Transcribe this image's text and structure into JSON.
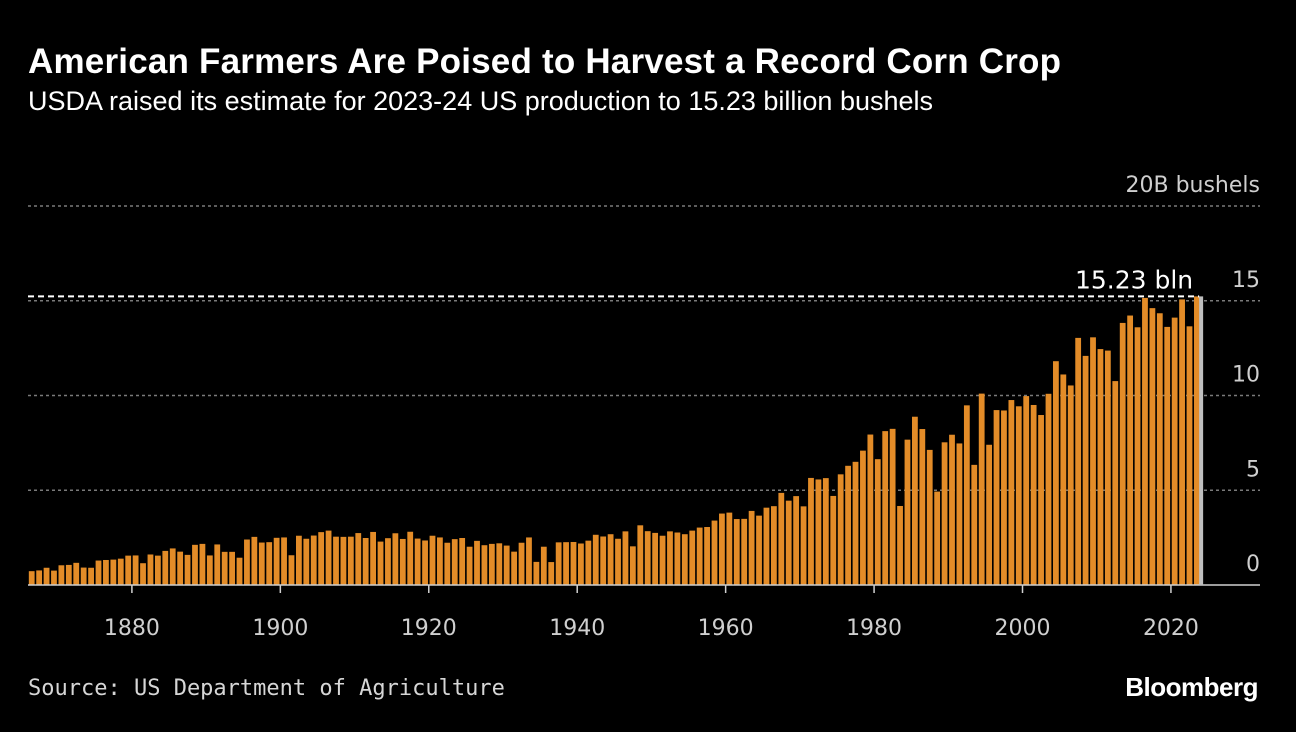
{
  "title": "American Farmers Are Poised to Harvest a Record Corn Crop",
  "subtitle": "USDA raised its estimate for 2023-24 US production to 15.23 billion bushels",
  "source": "Source: US Department of Agriculture",
  "brand": "Bloomberg",
  "colors": {
    "bar": "#e38c28",
    "background": "#000000",
    "estimate_bar": "#bfbfbf",
    "grid": "#7a7a7a"
  },
  "chart_data": {
    "type": "bar",
    "title": "American Farmers Are Poised to Harvest a Record Corn Crop",
    "subtitle": "USDA raised its estimate for 2023-24 US production to 15.23 billion bushels",
    "xlabel": "",
    "ylabel": "",
    "y_unit_label": "20B bushels",
    "xlim": [
      1866,
      2032
    ],
    "ylim": [
      0,
      20
    ],
    "grid": true,
    "legend": "none",
    "x_ticks": [
      1880,
      1900,
      1920,
      1940,
      1960,
      1980,
      2000,
      2020
    ],
    "y_ticks": [
      {
        "value": 0,
        "label": "0"
      },
      {
        "value": 5,
        "label": "5"
      },
      {
        "value": 10,
        "label": "10"
      },
      {
        "value": 15,
        "label": "15"
      },
      {
        "value": 20,
        "label": "20B bushels"
      }
    ],
    "annotation": {
      "label": "15.23 bln",
      "value": 15.23,
      "x": 2023
    },
    "estimate_year": 2023,
    "series": [
      {
        "start_year": 1866,
        "values": [
          0.73,
          0.77,
          0.91,
          0.76,
          1.04,
          1.06,
          1.17,
          0.92,
          0.91,
          1.29,
          1.32,
          1.34,
          1.39,
          1.55,
          1.56,
          1.15,
          1.61,
          1.55,
          1.8,
          1.93,
          1.76,
          1.59,
          2.12,
          2.17,
          1.56,
          2.14,
          1.75,
          1.75,
          1.44,
          2.4,
          2.54,
          2.24,
          2.26,
          2.49,
          2.51,
          1.57,
          2.6,
          2.44,
          2.61,
          2.79,
          2.87,
          2.55,
          2.54,
          2.55,
          2.74,
          2.48,
          2.8,
          2.29,
          2.47,
          2.73,
          2.43,
          2.81,
          2.45,
          2.35,
          2.6,
          2.51,
          2.23,
          2.42,
          2.48,
          2.02,
          2.33,
          2.1,
          2.17,
          2.2,
          2.08,
          1.76,
          2.23,
          2.51,
          1.22,
          2.02,
          1.21,
          2.25,
          2.26,
          2.27,
          2.19,
          2.34,
          2.65,
          2.56,
          2.68,
          2.44,
          2.83,
          2.04,
          3.15,
          2.84,
          2.75,
          2.6,
          2.83,
          2.77,
          2.68,
          2.87,
          3.03,
          3.06,
          3.4,
          3.77,
          3.82,
          3.48,
          3.49,
          3.91,
          3.66,
          4.08,
          4.16,
          4.86,
          4.45,
          4.69,
          4.15,
          5.65,
          5.57,
          5.64,
          4.7,
          5.84,
          6.29,
          6.5,
          7.09,
          7.94,
          6.64,
          8.12,
          8.24,
          4.17,
          7.67,
          8.88,
          8.23,
          7.13,
          4.93,
          7.53,
          7.93,
          7.47,
          9.48,
          6.34,
          10.1,
          7.4,
          9.23,
          9.21,
          9.76,
          9.43,
          9.97,
          9.5,
          8.97,
          10.09,
          11.81,
          11.11,
          10.53,
          13.04,
          12.09,
          13.07,
          12.45,
          12.37,
          10.76,
          13.83,
          14.22,
          13.6,
          15.15,
          14.61,
          14.34,
          13.62,
          14.11,
          15.07,
          13.65,
          15.23
        ]
      }
    ]
  }
}
